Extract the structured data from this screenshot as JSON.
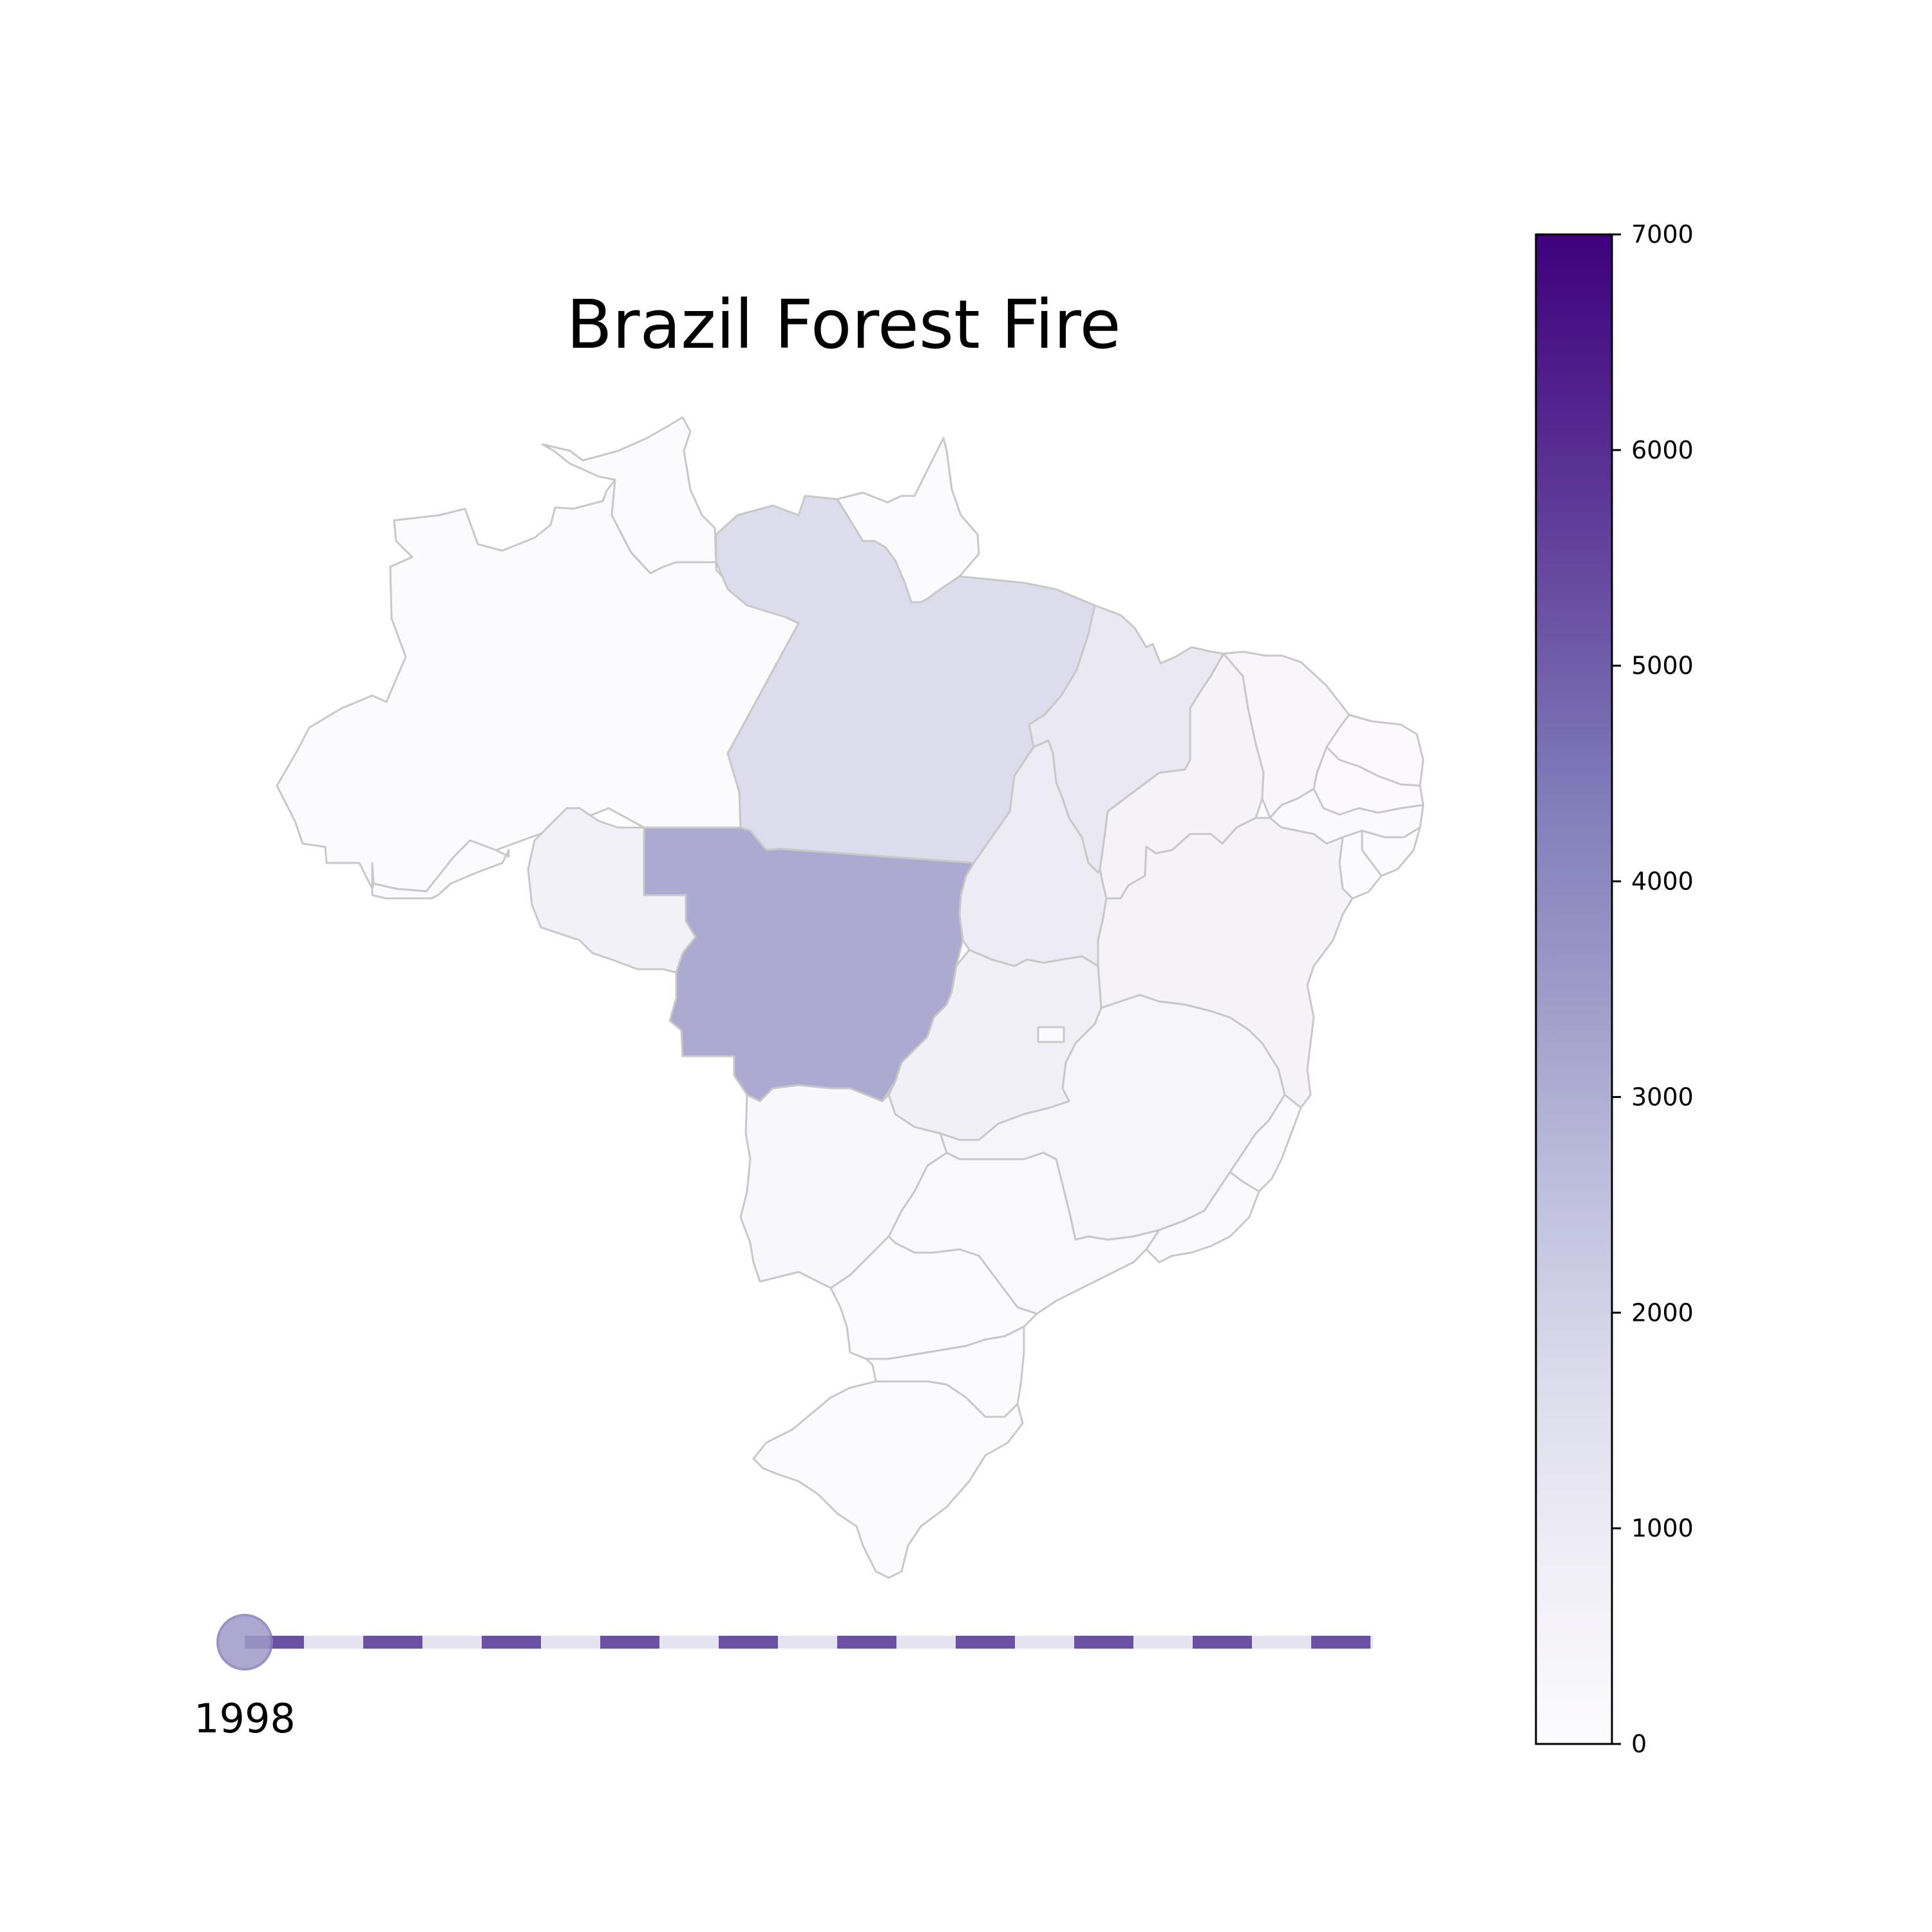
{
  "chart_data": {
    "type": "choropleth",
    "title": "Brazil Forest Fire",
    "year": "1998",
    "colorbar": {
      "min": 0,
      "max": 7000,
      "ticks": [
        0,
        1000,
        2000,
        3000,
        4000,
        5000,
        6000,
        7000
      ],
      "tick_labels": [
        "0",
        "1000",
        "2000",
        "3000",
        "4000",
        "5000",
        "6000",
        "7000"
      ],
      "colormap": "Purples",
      "color_stops": [
        "#fcfbfd",
        "#efedf5",
        "#dadaeb",
        "#bcbddc",
        "#9e9ac8",
        "#807dba",
        "#6a51a3",
        "#54278f",
        "#3f007d"
      ]
    },
    "regions": [
      {
        "id": "AM",
        "value": 80
      },
      {
        "id": "RR",
        "value": 80
      },
      {
        "id": "AP",
        "value": 50
      },
      {
        "id": "PA",
        "value": 1650
      },
      {
        "id": "MA",
        "value": 1100
      },
      {
        "id": "PI",
        "value": 500
      },
      {
        "id": "CE",
        "value": 300
      },
      {
        "id": "RN",
        "value": 100
      },
      {
        "id": "PB",
        "value": 100
      },
      {
        "id": "PE",
        "value": 150
      },
      {
        "id": "AL",
        "value": 80
      },
      {
        "id": "SE",
        "value": 80
      },
      {
        "id": "BA",
        "value": 500
      },
      {
        "id": "TO",
        "value": 950
      },
      {
        "id": "AC",
        "value": 50
      },
      {
        "id": "RO",
        "value": 650
      },
      {
        "id": "MT",
        "value": 3100
      },
      {
        "id": "GO",
        "value": 700
      },
      {
        "id": "DF",
        "value": 40
      },
      {
        "id": "MG",
        "value": 400
      },
      {
        "id": "ES",
        "value": 150
      },
      {
        "id": "RJ",
        "value": 150
      },
      {
        "id": "SP",
        "value": 200
      },
      {
        "id": "MS",
        "value": 250
      },
      {
        "id": "PR",
        "value": 80
      },
      {
        "id": "SC",
        "value": 60
      },
      {
        "id": "RS",
        "value": 60
      }
    ],
    "timeline": {
      "current_index": 0,
      "track_colors": [
        "#6a51a3",
        "#e5e3ef"
      ],
      "knob_color": "#9e9ac8"
    }
  }
}
